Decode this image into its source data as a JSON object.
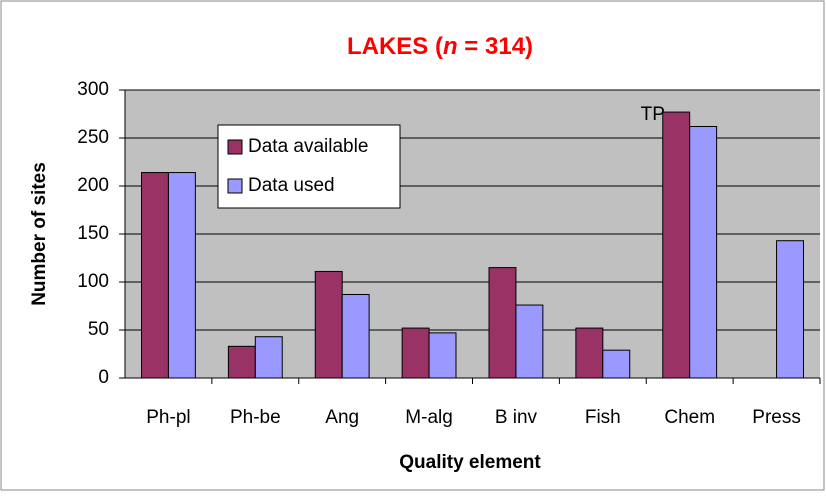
{
  "chart_data": {
    "type": "bar",
    "title": [
      "LAKES (",
      "n",
      " = 314)"
    ],
    "x_label": "Quality element",
    "y_label": "Number of sites",
    "categories": [
      "Ph-pl",
      "Ph-be",
      "Ang",
      "M-alg",
      "B inv",
      "Fish",
      "Chem",
      "Press"
    ],
    "series": [
      {
        "name": "Data available",
        "color": "#993366",
        "values": [
          214,
          33,
          111,
          52,
          115,
          52,
          277,
          null
        ]
      },
      {
        "name": "Data used",
        "color": "#9999ff",
        "values": [
          214,
          43,
          87,
          47,
          76,
          29,
          262,
          143
        ]
      }
    ],
    "annotations": [
      "TP"
    ],
    "ylim": [
      0,
      300
    ],
    "yticks": [
      0,
      50,
      100,
      150,
      200,
      250,
      300
    ],
    "grid": true,
    "plot_background": "#c0c0c0"
  }
}
